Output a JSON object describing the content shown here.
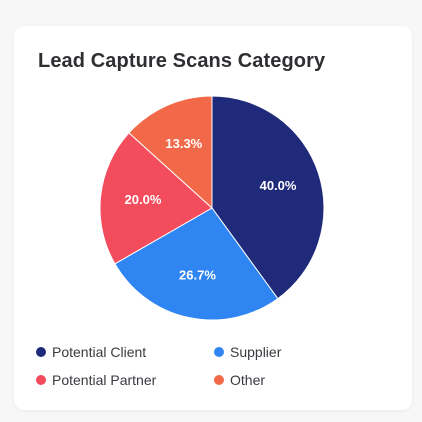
{
  "card": {
    "title": "Lead Capture Scans Category"
  },
  "chart_data": {
    "type": "pie",
    "title": "Lead Capture Scans Category",
    "start_angle_deg": 0,
    "direction": "clockwise",
    "slices": [
      {
        "label": "Potential Client",
        "value": 40.0,
        "display": "40.0%",
        "color": "#1f2a7a"
      },
      {
        "label": "Supplier",
        "value": 26.7,
        "display": "26.7%",
        "color": "#2f86f2"
      },
      {
        "label": "Potential Partner",
        "value": 20.0,
        "display": "20.0%",
        "color": "#f24c5d"
      },
      {
        "label": "Other",
        "value": 13.3,
        "display": "13.3%",
        "color": "#f2694a"
      }
    ],
    "legend": {
      "placement": "bottom",
      "entries": [
        "Potential Client",
        "Supplier",
        "Potential Partner",
        "Other"
      ]
    }
  }
}
